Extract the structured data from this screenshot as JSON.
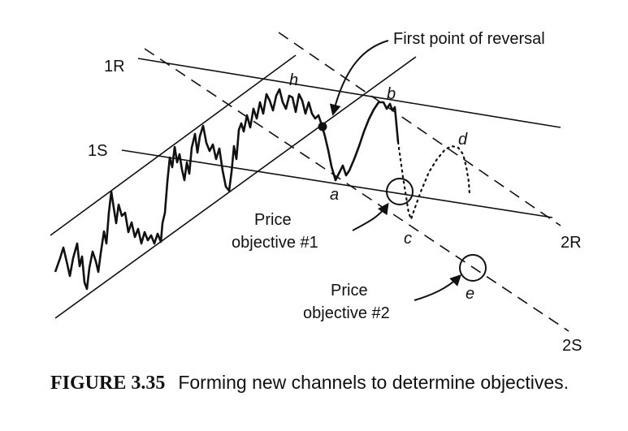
{
  "diagram": {
    "labels": {
      "line_1r": "1R",
      "line_1s": "1S",
      "line_2r": "2R",
      "line_2s": "2S",
      "first_reversal": "First point of reversal",
      "point_h": "h",
      "point_b": "b",
      "point_a": "a",
      "point_c": "c",
      "point_d": "d",
      "point_e": "e",
      "objective1_line1": "Price",
      "objective1_line2": "objective #1",
      "objective2_line1": "Price",
      "objective2_line2": "objective #2"
    }
  },
  "caption": {
    "figure_number": "FIGURE 3.35",
    "text": "Forming new channels to determine objectives."
  }
}
